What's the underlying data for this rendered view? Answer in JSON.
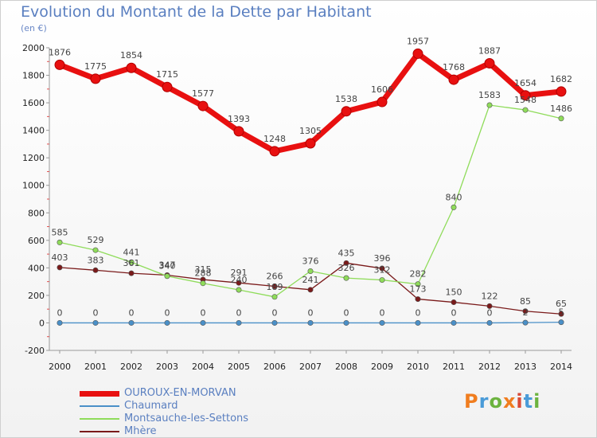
{
  "header": {
    "title": "Evolution du Montant de la Dette par Habitant",
    "unit": "(en €)"
  },
  "brand": {
    "logo_text": "Proxiti",
    "logo_colors": [
      "#f07d1f",
      "#4a9bd8",
      "#6cb33f",
      "#f07d1f",
      "#d94a37",
      "#4a9bd8",
      "#6cb33f"
    ]
  },
  "chart_data": {
    "type": "line",
    "title": "Evolution du Montant de la Dette par Habitant",
    "subtitle": "(en €)",
    "xlabel": "",
    "ylabel": "",
    "x": [
      "2000",
      "2001",
      "2002",
      "2003",
      "2004",
      "2005",
      "2006",
      "2007",
      "2008",
      "2009",
      "2010",
      "2011",
      "2012",
      "2013",
      "2014"
    ],
    "ylim": [
      -200,
      2000
    ],
    "yticks": [
      "-200",
      "0",
      "200",
      "400",
      "600",
      "800",
      "1000",
      "1200",
      "1400",
      "1600",
      "1800",
      "2000"
    ],
    "grid": false,
    "legend_position": "bottom-left",
    "series": [
      {
        "name": "OUROUX-EN-MORVAN",
        "color": "#e81010",
        "values": [
          1876,
          1775,
          1854,
          1715,
          1577,
          1393,
          1248,
          1305,
          1538,
          1606,
          1957,
          1768,
          1887,
          1654,
          1682
        ],
        "labels": [
          "1876",
          "1775",
          "1854",
          "1715",
          "1577",
          "1393",
          "1248",
          "1305",
          "1538",
          "1606",
          "1957",
          "1768",
          "1887",
          "1654",
          "1682"
        ]
      },
      {
        "name": "Chaumard",
        "color": "#4a90c8",
        "values": [
          0,
          0,
          0,
          0,
          0,
          0,
          0,
          0,
          0,
          0,
          0,
          0,
          0,
          2,
          5
        ],
        "labels": [
          "0",
          "0",
          "0",
          "0",
          "0",
          "0",
          "0",
          "0",
          "0",
          "0",
          "0",
          "0",
          "0",
          "2",
          "5"
        ]
      },
      {
        "name": "Montsauche-les-Settons",
        "color": "#8fdc5a",
        "values": [
          585,
          529,
          441,
          340,
          288,
          240,
          189,
          376,
          326,
          312,
          282,
          840,
          1583,
          1548,
          1486
        ],
        "labels": [
          "585",
          "529",
          "441",
          "340",
          "288",
          "240",
          "189",
          "376",
          "326",
          "312",
          "282",
          "840",
          "1583",
          "1548",
          "1486"
        ]
      },
      {
        "name": "Mhère",
        "color": "#7a1a1a",
        "values": [
          403,
          383,
          361,
          347,
          315,
          291,
          266,
          241,
          435,
          396,
          173,
          150,
          122,
          85,
          65
        ],
        "labels": [
          "403",
          "383",
          "361",
          "347",
          "315",
          "291",
          "266",
          "241",
          "435",
          "396",
          "173",
          "150",
          "122",
          "85",
          "65"
        ]
      }
    ]
  }
}
